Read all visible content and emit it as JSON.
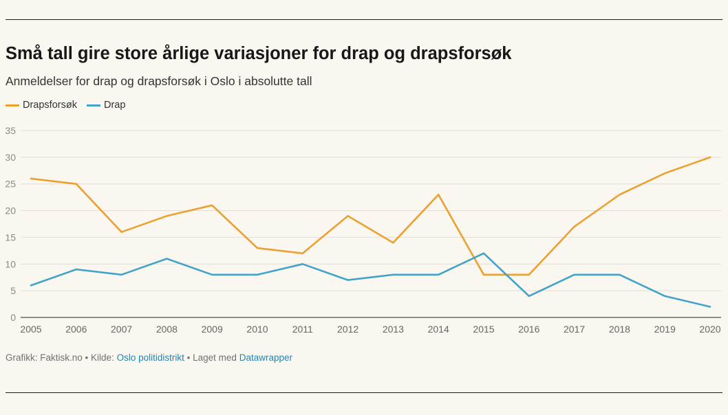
{
  "theme": {
    "background": "#f9f7ef",
    "link": "#1f86b0"
  },
  "chart_data": {
    "type": "line",
    "title": "Små tall gire store årlige variasjoner for drap og drapsforsøk",
    "subtitle": "Anmeldelser for drap og drapsforsøk i Oslo i absolutte tall",
    "x": [
      2005,
      2006,
      2007,
      2008,
      2009,
      2010,
      2011,
      2012,
      2013,
      2014,
      2015,
      2016,
      2017,
      2018,
      2019,
      2020
    ],
    "series": [
      {
        "name": "Drapsforsøk",
        "color": "#eba032",
        "values": [
          26,
          25,
          16,
          19,
          21,
          13,
          12,
          19,
          14,
          23,
          8,
          8,
          17,
          23,
          27,
          30
        ]
      },
      {
        "name": "Drap",
        "color": "#42a3c8",
        "values": [
          6,
          9,
          8,
          11,
          8,
          8,
          10,
          7,
          8,
          8,
          12,
          4,
          8,
          8,
          4,
          2
        ]
      }
    ],
    "ylim": [
      0,
      35
    ],
    "yticks": [
      0,
      5,
      10,
      15,
      20,
      25,
      30,
      35
    ],
    "grid": true,
    "legend": "top-left"
  },
  "footer": {
    "credit": "Grafikk: Faktisk.no",
    "separator": "•",
    "source_label": "Kilde:",
    "source_link": "Oslo politidistrikt",
    "made_with_label": "Laget med",
    "made_with_link": "Datawrapper"
  }
}
